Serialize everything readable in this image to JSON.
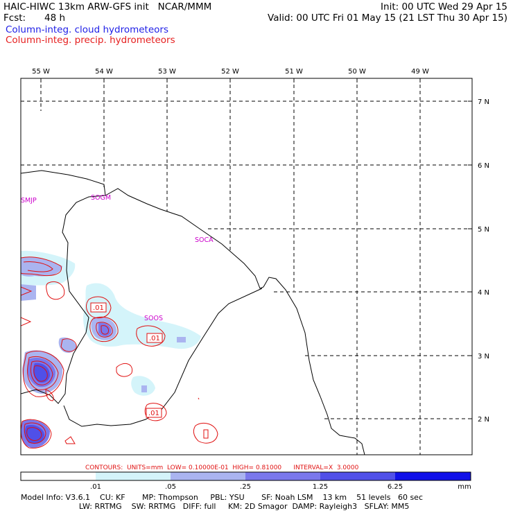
{
  "header": {
    "title": "HAIC-HIWC 13km ARW-GFS init   NCAR/MMM",
    "init": "Init: 00 UTC Wed 29 Apr 15",
    "fcst_label": "Fcst:",
    "fcst_value": "48 h",
    "valid": "Valid: 00 UTC Fri 01 May 15 (21 LST Thu 30 Apr 15)",
    "field1": "Column-integ. cloud hydrometeors",
    "field2": "Column-integ. precip. hydrometeors"
  },
  "colors": {
    "field1": "#1e1ee6",
    "field2": "#e61e1e",
    "station": "#cc00cc",
    "contour": "#e01010"
  },
  "map": {
    "lon_labels": [
      "55 W",
      "54 W",
      "53 W",
      "52 W",
      "51 W",
      "50 W",
      "49 W"
    ],
    "lat_labels": [
      "7 N",
      "6 N",
      "5 N",
      "4 N",
      "3 N",
      "2 N"
    ],
    "stations": [
      "SMJP",
      "SOGM",
      "SOCA",
      "SOOS"
    ],
    "contour_labels": [
      ".01",
      ".01",
      ".01"
    ]
  },
  "contours_info": "CONTOURS:  UNITS=mm  LOW= 0.10000E-01  HIGH= 0.81000      INTERVAL=X  3.0000",
  "colorbar": {
    "ticks": [
      ".01",
      ".05",
      ".25",
      "1.25",
      "6.25"
    ],
    "unit": "mm",
    "colors": [
      "#ffffff",
      "#d4f4fa",
      "#aab4f0",
      "#7a78ec",
      "#5050e8",
      "#1010e8"
    ]
  },
  "footer": {
    "line1": "Model Info: V3.6.1    CU: KF       MP: Thompson     PBL: YSU       SF: Noah LSM    13 km    51 levels   60 sec",
    "line2": "                        LW: RRTMG    SW: RRTMG   DIFF: full     KM: 2D Smagor  DAMP: Rayleigh3   SFLAY: MM5"
  }
}
